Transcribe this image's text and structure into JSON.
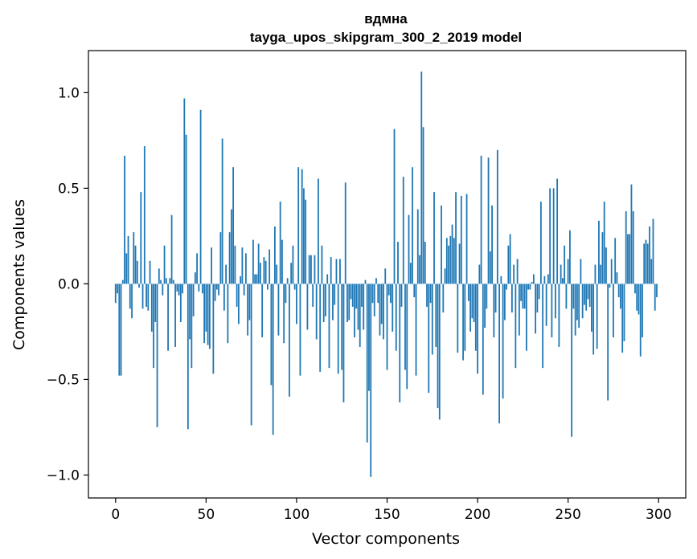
{
  "chart_data": {
    "type": "bar",
    "title": "вдмна",
    "subtitle": "tayga_upos_skipgram_300_2_2019 model",
    "xlabel": "Vector components",
    "ylabel": "Components values",
    "xlim": [
      -15,
      315
    ],
    "ylim": [
      -1.12,
      1.22
    ],
    "xticks": [
      0,
      50,
      100,
      150,
      200,
      250,
      300
    ],
    "yticks": [
      -1.0,
      -0.5,
      0.0,
      0.5,
      1.0
    ],
    "ytick_labels": [
      "−1.0",
      "−0.5",
      "0.0",
      "0.5",
      "1.0"
    ],
    "bar_color": "#1f77b4",
    "grid": false,
    "x": "0..299",
    "values": [
      -0.1,
      -0.05,
      -0.48,
      -0.48,
      0.02,
      0.67,
      0.16,
      0.25,
      -0.13,
      -0.18,
      0.27,
      0.2,
      0.12,
      -0.02,
      0.48,
      -0.13,
      0.72,
      -0.12,
      -0.14,
      0.12,
      -0.25,
      -0.44,
      -0.2,
      -0.75,
      0.08,
      0.02,
      -0.06,
      0.2,
      0.03,
      -0.35,
      0.03,
      0.36,
      0.02,
      -0.33,
      -0.04,
      -0.06,
      -0.2,
      -0.05,
      0.97,
      0.78,
      -0.76,
      -0.29,
      -0.44,
      -0.17,
      0.06,
      0.16,
      -0.04,
      0.91,
      -0.05,
      -0.31,
      -0.25,
      -0.32,
      -0.34,
      0.19,
      -0.47,
      -0.09,
      -0.03,
      -0.06,
      0.27,
      0.76,
      -0.14,
      0.1,
      -0.31,
      0.27,
      0.39,
      0.61,
      0.2,
      -0.12,
      -0.21,
      0.04,
      0.19,
      -0.06,
      0.16,
      -0.27,
      -0.19,
      -0.74,
      0.23,
      0.05,
      0.05,
      0.21,
      0.11,
      -0.28,
      0.14,
      0.12,
      -0.03,
      0.18,
      -0.53,
      -0.79,
      0.3,
      0.1,
      -0.27,
      0.43,
      0.23,
      -0.31,
      -0.1,
      0.03,
      -0.59,
      0.11,
      0.2,
      -0.03,
      -0.21,
      0.61,
      -0.48,
      0.6,
      0.5,
      0.44,
      -0.24,
      0.15,
      0.15,
      -0.12,
      0.15,
      -0.29,
      0.55,
      -0.46,
      0.2,
      -0.2,
      -0.17,
      0.05,
      -0.44,
      0.14,
      -0.19,
      -0.11,
      0.13,
      -0.47,
      0.13,
      -0.45,
      -0.62,
      0.53,
      -0.2,
      -0.19,
      -0.08,
      -0.12,
      -0.28,
      -0.13,
      -0.24,
      -0.33,
      -0.12,
      -0.24,
      0.02,
      -0.83,
      -0.56,
      -1.01,
      -0.1,
      -0.17,
      0.03,
      -0.1,
      -0.27,
      -0.21,
      -0.29,
      0.08,
      -0.45,
      -0.06,
      -0.1,
      -0.25,
      0.81,
      -0.35,
      0.22,
      -0.62,
      -0.12,
      0.56,
      -0.45,
      -0.55,
      0.36,
      0.11,
      0.61,
      -0.07,
      -0.48,
      0.39,
      0.15,
      1.11,
      0.82,
      0.22,
      -0.12,
      -0.57,
      -0.1,
      -0.37,
      0.48,
      -0.33,
      -0.65,
      -0.71,
      0.41,
      -0.15,
      0.08,
      0.24,
      0.2,
      0.25,
      0.31,
      0.24,
      0.48,
      -0.36,
      0.21,
      0.46,
      -0.4,
      -0.35,
      0.47,
      -0.09,
      -0.25,
      -0.18,
      -0.2,
      -0.35,
      -0.47,
      0.1,
      0.67,
      -0.58,
      -0.23,
      -0.13,
      0.66,
      0.17,
      0.41,
      -0.28,
      -0.15,
      0.7,
      -0.73,
      0.04,
      -0.6,
      -0.19,
      -0.03,
      0.2,
      0.26,
      -0.15,
      0.1,
      -0.44,
      0.13,
      -0.27,
      -0.09,
      -0.13,
      -0.13,
      -0.35,
      -0.03,
      -0.03,
      0.01,
      0.05,
      -0.26,
      -0.15,
      -0.08,
      0.43,
      -0.44,
      0.04,
      -0.22,
      0.05,
      0.5,
      -0.28,
      0.5,
      -0.18,
      0.55,
      -0.33,
      0.1,
      0.03,
      0.2,
      -0.13,
      0.13,
      0.28,
      -0.8,
      -0.13,
      -0.27,
      -0.19,
      -0.23,
      0.13,
      -0.18,
      -0.11,
      -0.14,
      -0.08,
      -0.12,
      -0.25,
      -0.37,
      0.1,
      -0.34,
      0.33,
      0.1,
      0.27,
      0.43,
      0.19,
      -0.61,
      -0.02,
      0.13,
      -0.28,
      0.24,
      0.06,
      -0.07,
      -0.13,
      -0.36,
      -0.3,
      0.38,
      0.26,
      0.26,
      0.52,
      0.38,
      -0.05,
      -0.14,
      -0.16,
      -0.38,
      -0.28,
      0.21,
      0.23,
      0.21,
      0.3,
      0.13,
      0.34,
      -0.14,
      -0.07
    ]
  }
}
